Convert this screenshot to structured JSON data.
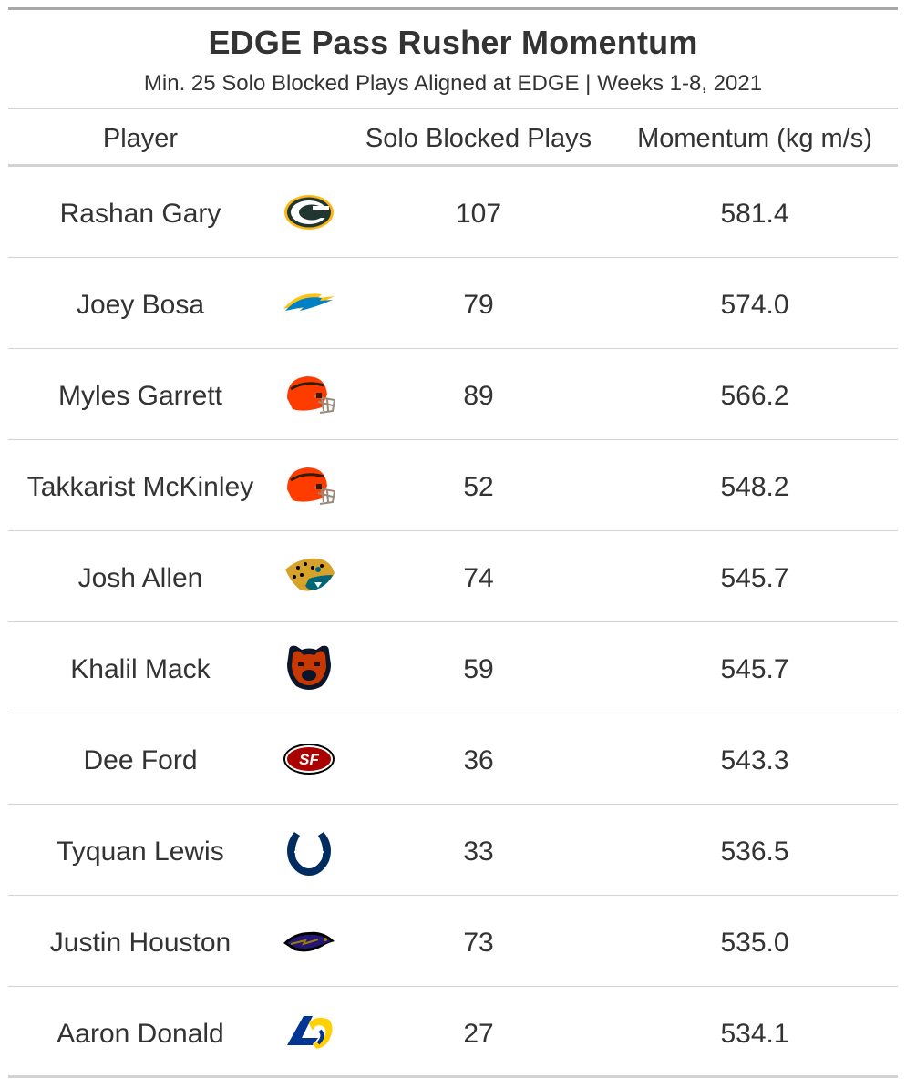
{
  "table": {
    "title": "EDGE Pass Rusher Momentum",
    "subtitle": "Min. 25 Solo Blocked Plays Aligned at EDGE | Weeks 1-8, 2021",
    "columns": {
      "player": "Player",
      "plays": "Solo Blocked Plays",
      "momentum": "Momentum (kg m/s)"
    }
  },
  "chart_data": {
    "type": "table",
    "title": "EDGE Pass Rusher Momentum",
    "subtitle": "Min. 25 Solo Blocked Plays Aligned at EDGE | Weeks 1-8, 2021",
    "columns": [
      "Player",
      "",
      "Solo Blocked Plays",
      "Momentum (kg m/s)"
    ],
    "rows": [
      {
        "player": "Rashan Gary",
        "team_logo": "packers-logo-icon",
        "plays": "107",
        "momentum": "581.4"
      },
      {
        "player": "Joey Bosa",
        "team_logo": "chargers-logo-icon",
        "plays": "79",
        "momentum": "574.0"
      },
      {
        "player": "Myles Garrett",
        "team_logo": "browns-logo-icon",
        "plays": "89",
        "momentum": "566.2"
      },
      {
        "player": "Takkarist McKinley",
        "team_logo": "browns-logo-icon",
        "plays": "52",
        "momentum": "548.2"
      },
      {
        "player": "Josh Allen",
        "team_logo": "jaguars-logo-icon",
        "plays": "74",
        "momentum": "545.7"
      },
      {
        "player": "Khalil Mack",
        "team_logo": "bears-logo-icon",
        "plays": "59",
        "momentum": "545.7"
      },
      {
        "player": "Dee Ford",
        "team_logo": "49ers-logo-icon",
        "plays": "36",
        "momentum": "543.3"
      },
      {
        "player": "Tyquan Lewis",
        "team_logo": "colts-logo-icon",
        "plays": "33",
        "momentum": "536.5"
      },
      {
        "player": "Justin Houston",
        "team_logo": "ravens-logo-icon",
        "plays": "73",
        "momentum": "535.0"
      },
      {
        "player": "Aaron Donald",
        "team_logo": "rams-logo-icon",
        "plays": "27",
        "momentum": "534.1"
      }
    ]
  },
  "colors": {
    "text": "#333333",
    "rule": "#d3d3d3",
    "top_rule": "#a8a8a8",
    "packers_green": "#203731",
    "packers_gold": "#ffb612",
    "chargers_blue": "#0080c6",
    "chargers_gold": "#ffc20e",
    "browns_orange": "#ff3c00",
    "browns_brown": "#311d00",
    "jaguars_teal": "#006778",
    "jaguars_gold": "#d7a22a",
    "bears_navy": "#0b162a",
    "bears_orange": "#c83803",
    "niners_red": "#aa0000",
    "niners_gold": "#b3995d",
    "colts_blue": "#002c5f",
    "ravens_purple": "#241773",
    "ravens_gold": "#9e7c0c",
    "rams_blue": "#003594",
    "rams_yellow": "#ffd100"
  }
}
